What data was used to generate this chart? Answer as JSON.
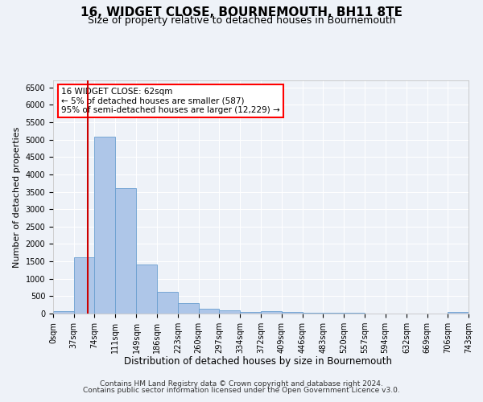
{
  "title": "16, WIDGET CLOSE, BOURNEMOUTH, BH11 8TE",
  "subtitle": "Size of property relative to detached houses in Bournemouth",
  "xlabel": "Distribution of detached houses by size in Bournemouth",
  "ylabel": "Number of detached properties",
  "bar_color": "#aec6e8",
  "bar_edge_color": "#6a9fd0",
  "background_color": "#eef2f8",
  "grid_color": "#ffffff",
  "annotation_box_text": "16 WIDGET CLOSE: 62sqm\n← 5% of detached houses are smaller (587)\n95% of semi-detached houses are larger (12,229) →",
  "vline_x": 62,
  "vline_color": "#cc0000",
  "footer_line1": "Contains HM Land Registry data © Crown copyright and database right 2024.",
  "footer_line2": "Contains public sector information licensed under the Open Government Licence v3.0.",
  "bin_edges": [
    0,
    37,
    74,
    111,
    149,
    186,
    223,
    260,
    297,
    334,
    372,
    409,
    446,
    483,
    520,
    557,
    594,
    632,
    669,
    706,
    743
  ],
  "bar_heights": [
    75,
    1620,
    5080,
    3600,
    1400,
    620,
    300,
    130,
    90,
    50,
    60,
    50,
    30,
    20,
    15,
    10,
    8,
    5,
    5,
    40
  ],
  "ylim": [
    0,
    6700
  ],
  "yticks": [
    0,
    500,
    1000,
    1500,
    2000,
    2500,
    3000,
    3500,
    4000,
    4500,
    5000,
    5500,
    6000,
    6500
  ],
  "title_fontsize": 11,
  "subtitle_fontsize": 9,
  "ylabel_fontsize": 8,
  "xlabel_fontsize": 8.5,
  "tick_fontsize": 7,
  "annotation_fontsize": 7.5,
  "footer_fontsize": 6.5
}
